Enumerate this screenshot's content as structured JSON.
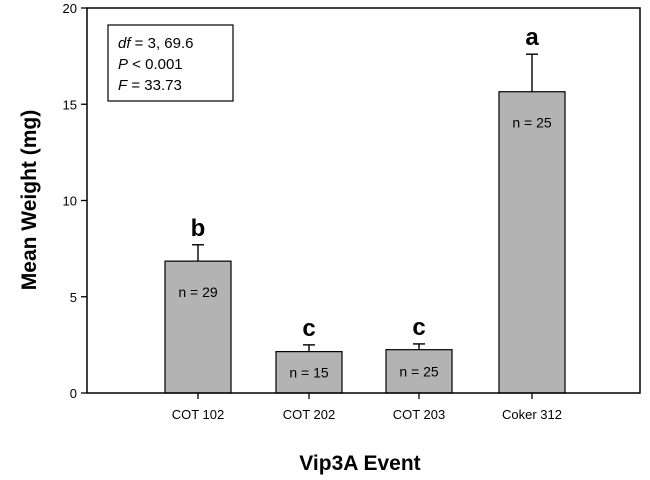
{
  "chart_data": {
    "type": "bar",
    "categories": [
      "COT 102",
      "COT 202",
      "COT 203",
      "Coker 312"
    ],
    "values": [
      6.85,
      2.15,
      2.25,
      15.65
    ],
    "error_upper": [
      7.7,
      2.5,
      2.55,
      17.6
    ],
    "significance_letters": [
      "b",
      "c",
      "c",
      "a"
    ],
    "n_labels": [
      "n = 29",
      "n = 15",
      "n = 25",
      "n = 25"
    ],
    "xlabel": "Vip3A Event",
    "ylabel": "Mean Weight (mg)",
    "ylim": [
      0,
      20
    ],
    "yticks": [
      "0",
      "5",
      "10",
      "15",
      "20"
    ],
    "stats_box": {
      "df_key": "df",
      "df_value": " =  3, 69.6",
      "p_key": "P",
      "p_value": " < 0.001",
      "f_key": "F",
      "f_value": " = 33.73",
      "position": "top-left"
    },
    "colors": {
      "bar": "#b3b3b3",
      "frame": "#000000",
      "background": "#ffffff"
    },
    "grid": false
  }
}
